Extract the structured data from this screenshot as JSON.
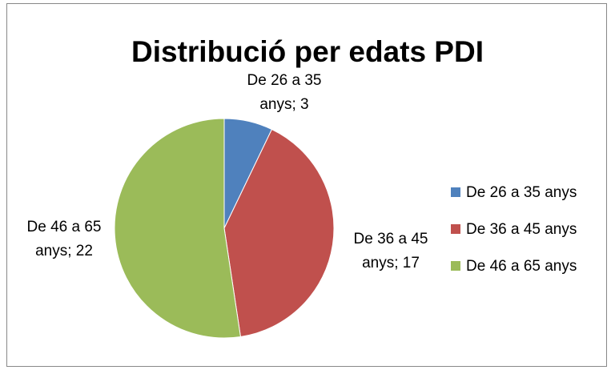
{
  "chart_data": {
    "type": "pie",
    "title": "Distribució per edats PDI",
    "categories": [
      "De 26 a 35 anys",
      "De 36 a 45 anys",
      "De 46 a 65 anys"
    ],
    "values": [
      3,
      17,
      22
    ],
    "value_labels": [
      "De 26 a 35 anys; 3",
      "De 36 a 45 anys; 17",
      "De 46 a 65 anys; 22"
    ],
    "colors": [
      "#4f81bd",
      "#c0504d",
      "#9bbb59"
    ],
    "legend": "right"
  }
}
